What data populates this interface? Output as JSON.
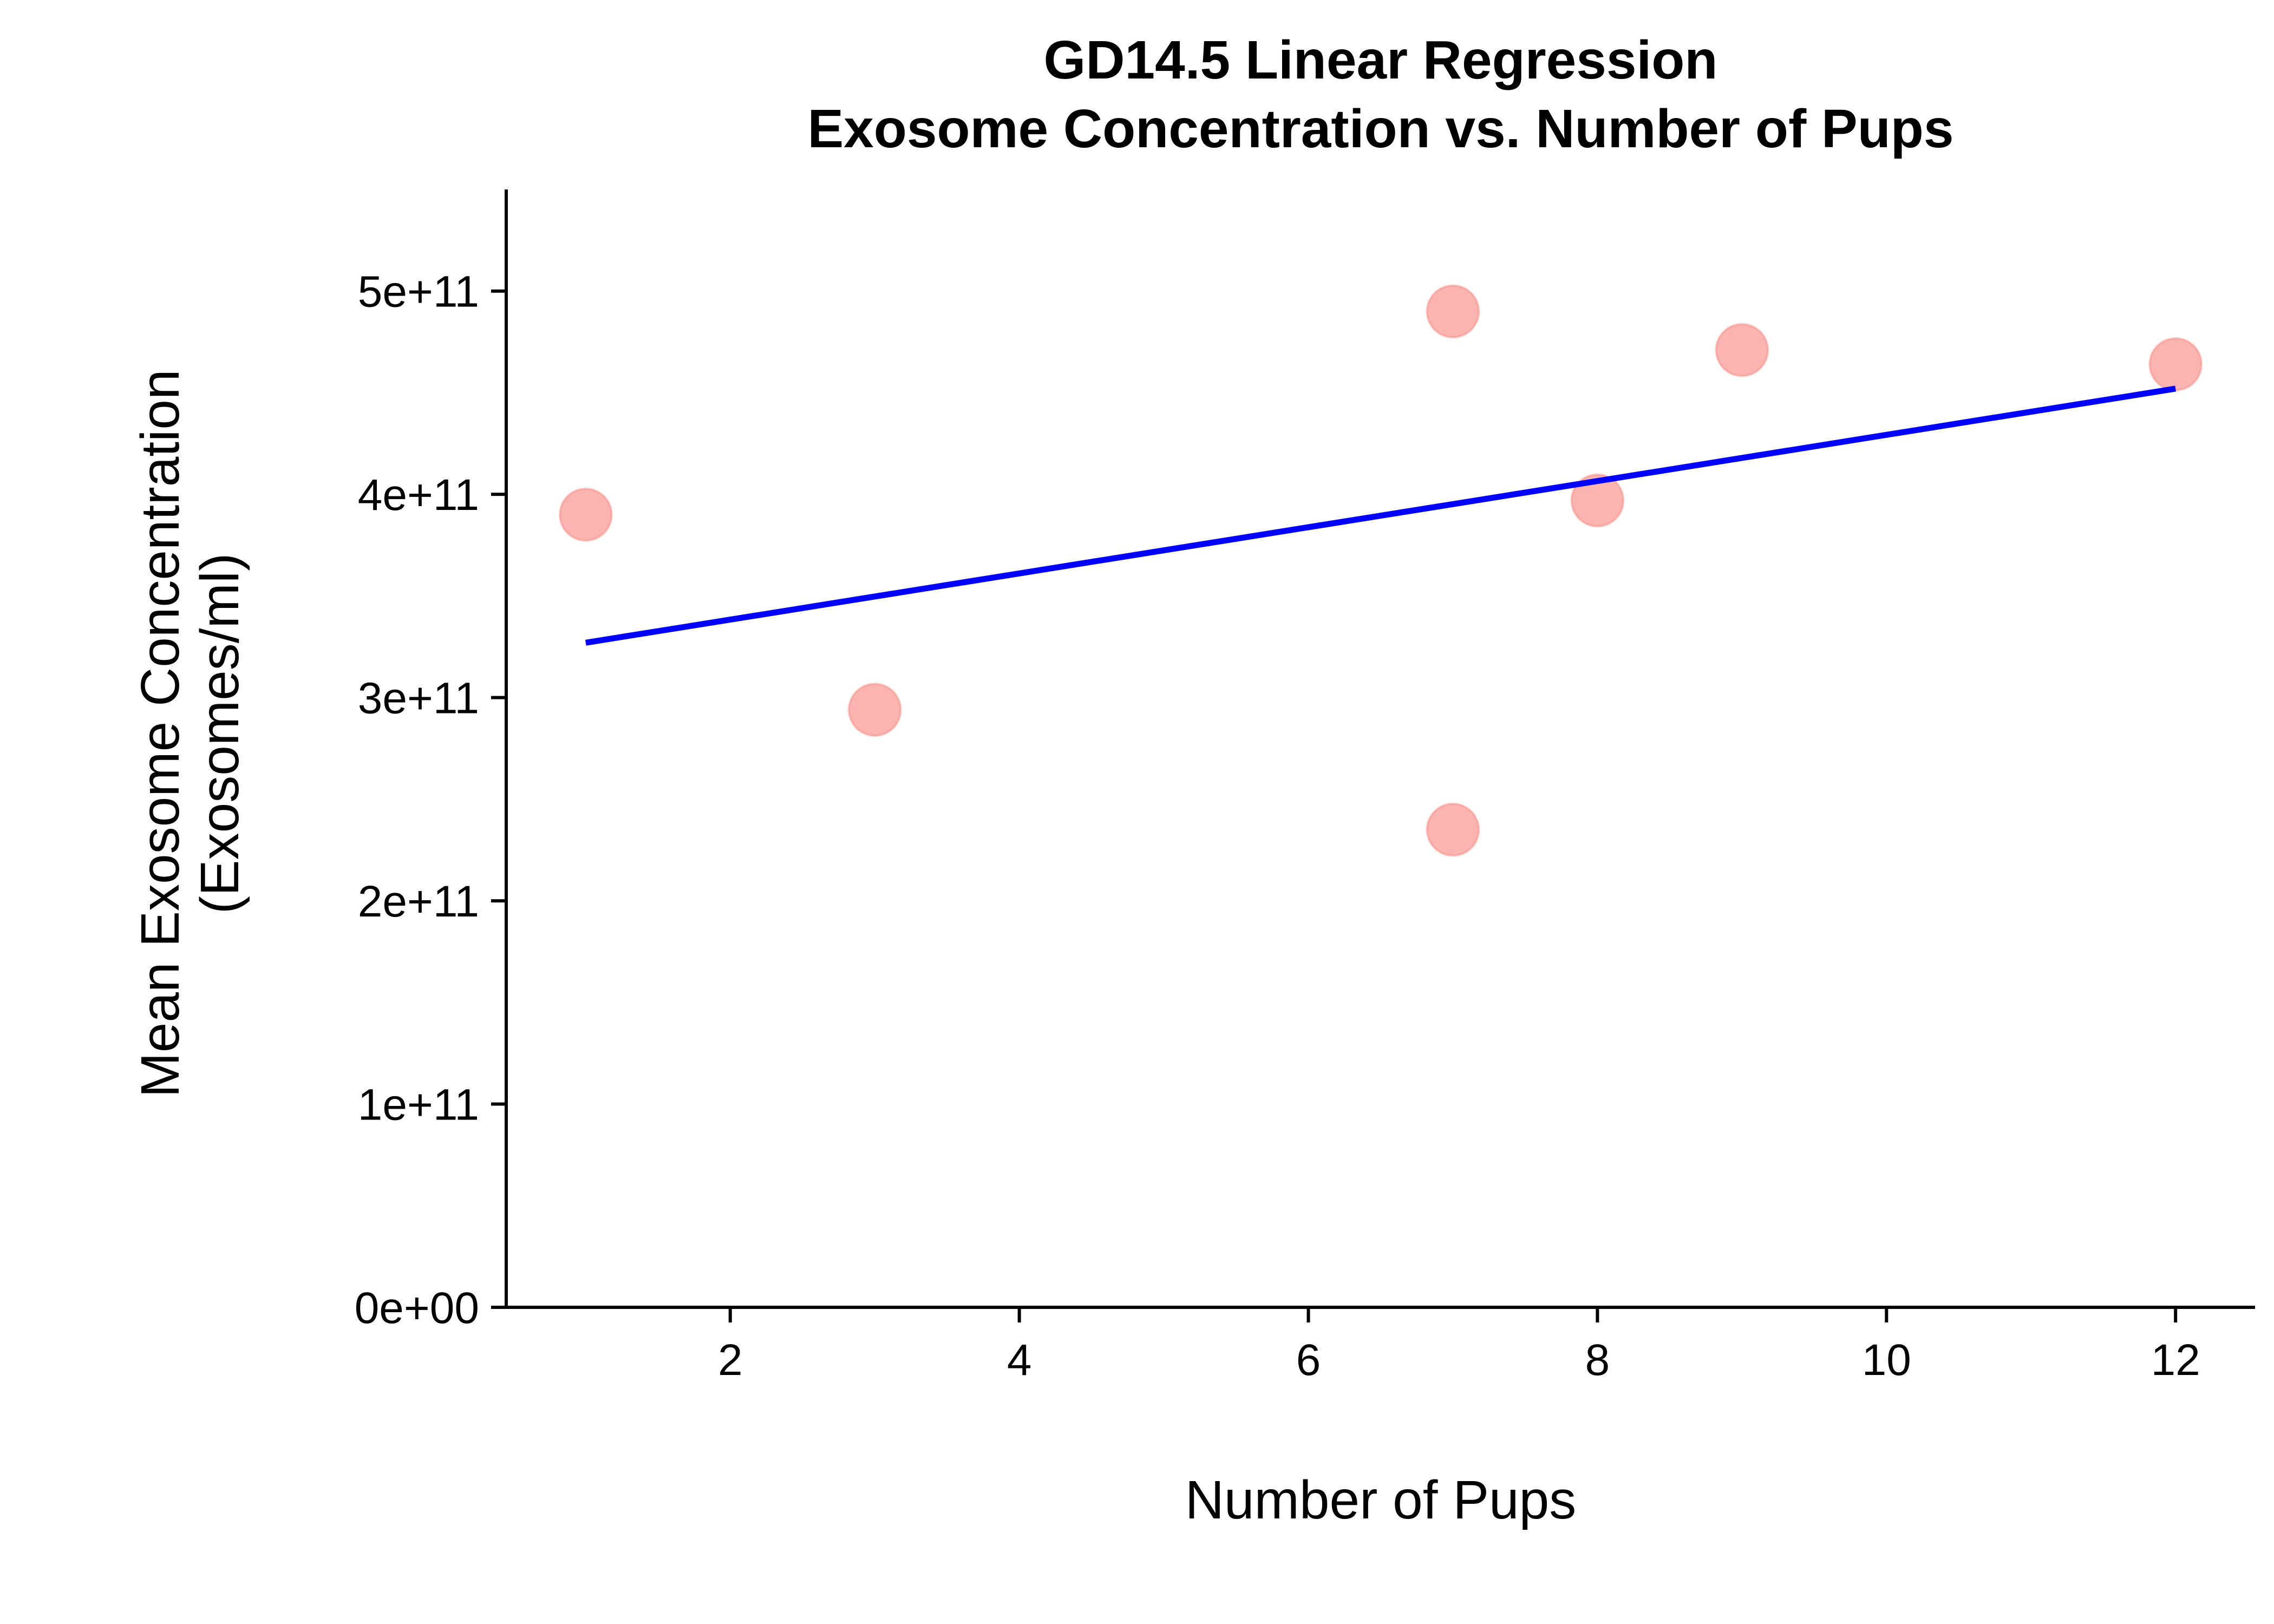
{
  "chart_data": {
    "type": "scatter",
    "title": [
      "GD14.5 Linear Regression",
      "Exosome Concentration vs. Number of Pups"
    ],
    "xlabel": "Number of Pups",
    "ylabel": [
      "Mean Exosome Concentration",
      "(Exosomes/ml)"
    ],
    "xlim": [
      0.45,
      12.55
    ],
    "ylim": [
      0,
      550000000000.0
    ],
    "x_ticks": [
      2,
      4,
      6,
      8,
      10,
      12
    ],
    "x_tick_labels": [
      "2",
      "4",
      "6",
      "8",
      "10",
      "12"
    ],
    "y_ticks": [
      0,
      100000000000.0,
      200000000000.0,
      300000000000.0,
      400000000000.0,
      500000000000.0
    ],
    "y_tick_labels": [
      "0e+00",
      "1e+11",
      "2e+11",
      "3e+11",
      "4e+11",
      "5e+11"
    ],
    "grid": false,
    "legend": "none",
    "points": {
      "x": [
        1,
        3,
        7,
        7,
        8,
        9,
        12
      ],
      "y": [
        390000000000.0,
        294000000000.0,
        490000000000.0,
        235000000000.0,
        397000000000.0,
        471000000000.0,
        464000000000.0
      ],
      "color": "#F8766D"
    },
    "regression_line": {
      "x": [
        1,
        12
      ],
      "y": [
        327000000000.0,
        452000000000.0
      ],
      "color": "#0000FF"
    }
  }
}
